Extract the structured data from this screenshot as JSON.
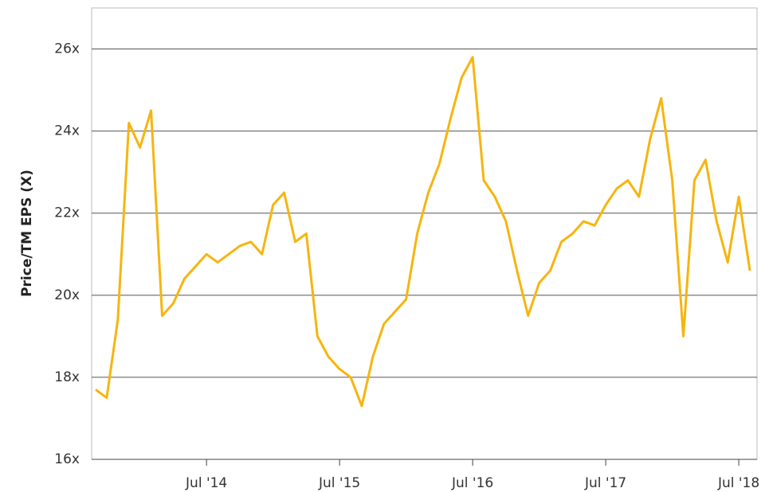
{
  "chart_data": {
    "type": "line",
    "y_label": "Price/TM EPS (X)",
    "x": [
      "2013-09",
      "2013-10",
      "2013-11",
      "2013-12",
      "2014-01",
      "2014-02",
      "2014-03",
      "2014-04",
      "2014-05",
      "2014-06",
      "2014-07",
      "2014-08",
      "2014-09",
      "2014-10",
      "2014-11",
      "2014-12",
      "2015-01",
      "2015-02",
      "2015-03",
      "2015-04",
      "2015-05",
      "2015-06",
      "2015-07",
      "2015-08",
      "2015-09",
      "2015-10",
      "2015-11",
      "2015-12",
      "2016-01",
      "2016-02",
      "2016-03",
      "2016-04",
      "2016-05",
      "2016-06",
      "2016-07",
      "2016-08",
      "2016-09",
      "2016-10",
      "2016-11",
      "2016-12",
      "2017-01",
      "2017-02",
      "2017-03",
      "2017-04",
      "2017-05",
      "2017-06",
      "2017-07",
      "2017-08",
      "2017-09",
      "2017-10",
      "2017-11",
      "2017-12",
      "2018-01",
      "2018-02",
      "2018-03",
      "2018-04",
      "2018-05",
      "2018-06",
      "2018-07",
      "2018-08"
    ],
    "series": [
      {
        "name": "Price/TM EPS",
        "color": "#f6b50f",
        "values": [
          17.7,
          17.5,
          19.4,
          24.2,
          23.6,
          24.5,
          19.5,
          19.8,
          20.4,
          20.7,
          21.0,
          20.8,
          21.0,
          21.2,
          21.3,
          21.0,
          22.2,
          22.5,
          21.3,
          21.5,
          19.0,
          18.5,
          18.2,
          18.0,
          17.3,
          18.5,
          19.3,
          19.6,
          19.9,
          21.5,
          22.5,
          23.2,
          24.3,
          25.3,
          25.8,
          22.8,
          22.4,
          21.8,
          20.6,
          19.5,
          20.3,
          20.6,
          21.3,
          21.5,
          21.8,
          21.7,
          22.2,
          22.6,
          22.8,
          22.4,
          23.8,
          24.8,
          22.8,
          19.0,
          22.8,
          23.3,
          21.8,
          20.8,
          22.4,
          20.6
        ]
      }
    ],
    "xlim": [
      "2013-09",
      "2018-08"
    ],
    "xticks": [
      {
        "value": "2014-07",
        "label": "Jul '14"
      },
      {
        "value": "2015-07",
        "label": "Jul '15"
      },
      {
        "value": "2016-07",
        "label": "Jul '16"
      },
      {
        "value": "2017-07",
        "label": "Jul '17"
      },
      {
        "value": "2018-07",
        "label": "Jul '18"
      }
    ],
    "ylim": [
      16,
      27
    ],
    "yticks": [
      {
        "value": 16,
        "label": "16x"
      },
      {
        "value": 18,
        "label": "18x"
      },
      {
        "value": 20,
        "label": "20x"
      },
      {
        "value": 22,
        "label": "22x"
      },
      {
        "value": 24,
        "label": "24x"
      },
      {
        "value": 26,
        "label": "26x"
      }
    ],
    "grid": true
  }
}
